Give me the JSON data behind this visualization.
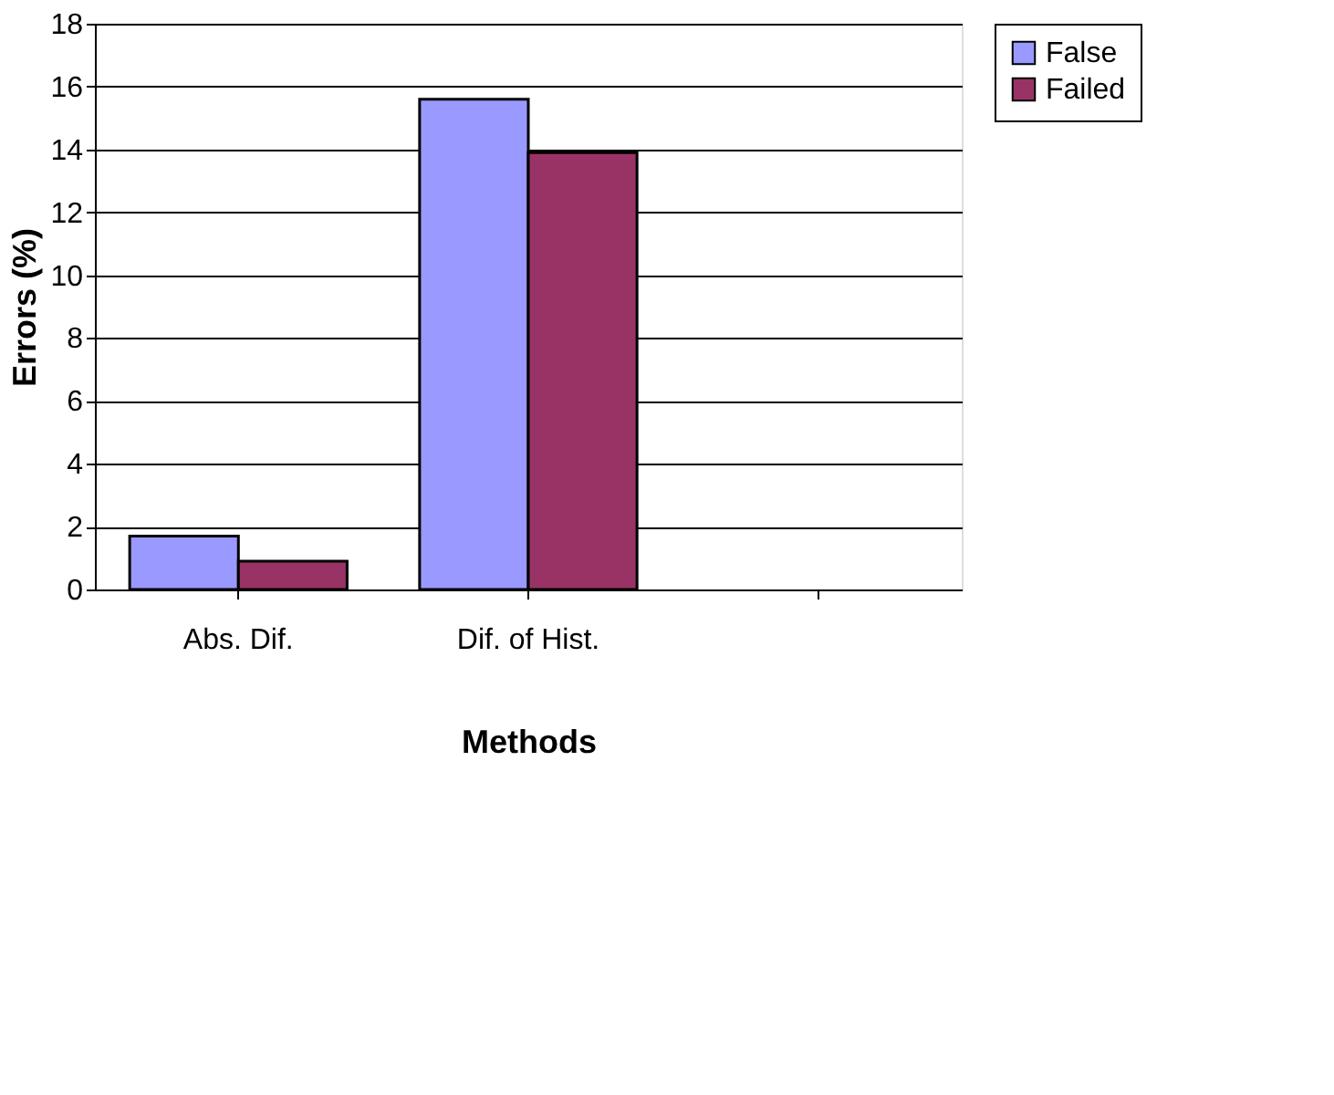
{
  "chart_data": {
    "type": "bar",
    "xlabel": "Methods",
    "ylabel": "Errors (%)",
    "categories": [
      "Abs. Dif.",
      "Dif. of Hist.",
      null
    ],
    "series": [
      {
        "name": "False",
        "color": "#9999ff",
        "values": [
          1.7,
          15.6,
          null
        ]
      },
      {
        "name": "Failed",
        "color": "#993366",
        "values": [
          0.9,
          13.9,
          null
        ]
      }
    ],
    "ylim": [
      0,
      18
    ],
    "yticks": [
      0,
      2,
      4,
      6,
      8,
      10,
      12,
      14,
      16,
      18
    ],
    "grid": "y",
    "legend": "right"
  }
}
